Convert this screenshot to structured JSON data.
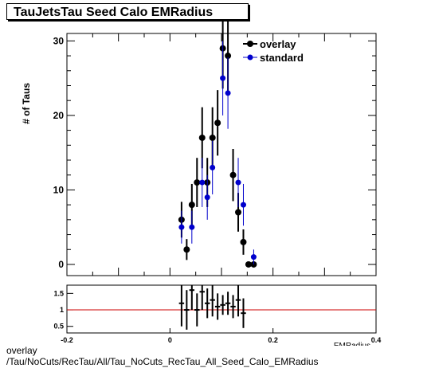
{
  "chart_data": [
    {
      "type": "scatter",
      "title": "TauJetsTau Seed Calo EMRadius",
      "ylabel": "# of Taus",
      "xlabel": "EMRadius",
      "xlim": [
        -0.2,
        0.4
      ],
      "ylim": [
        -1.5,
        31
      ],
      "y_ticks": [
        0,
        10,
        20,
        30
      ],
      "legend": "top-right",
      "series": [
        {
          "name": "overlay",
          "color": "#000000",
          "x": [
            0.0225,
            0.0325,
            0.0425,
            0.0525,
            0.0625,
            0.0725,
            0.0825,
            0.0925,
            0.1025,
            0.1125,
            0.1225,
            0.1325,
            0.1425,
            0.1525,
            0.1625
          ],
          "y": [
            6,
            2,
            8,
            11,
            17,
            11,
            17,
            19,
            29,
            28,
            12,
            7,
            3,
            0,
            0
          ],
          "err": [
            2.4,
            1.4,
            2.8,
            3.3,
            4.1,
            3.3,
            4.1,
            4.4,
            5.4,
            5.3,
            3.5,
            2.6,
            1.7,
            0,
            0
          ]
        },
        {
          "name": "standard",
          "color": "#0000cc",
          "x": [
            0.0225,
            0.0425,
            0.0625,
            0.0725,
            0.0825,
            0.1025,
            0.1125,
            0.1325,
            0.1425,
            0.1625
          ],
          "y": [
            5,
            5,
            11,
            9,
            13,
            25,
            23,
            11,
            8,
            1
          ],
          "err": [
            2.2,
            2.2,
            3.3,
            3.0,
            3.6,
            5.0,
            4.8,
            3.3,
            2.8,
            1.0
          ]
        }
      ]
    },
    {
      "type": "scatter",
      "xlim": [
        -0.2,
        0.4
      ],
      "ylim": [
        0.3,
        1.75
      ],
      "x_ticks": [
        -0.2,
        0,
        0.2,
        0.4
      ],
      "y_ticks": [
        0.5,
        1,
        1.5
      ],
      "reference_line": 1,
      "series": [
        {
          "x": [
            0.0225,
            0.0325,
            0.0425,
            0.0525,
            0.0625,
            0.0725,
            0.0825,
            0.0925,
            0.1025,
            0.1125,
            0.1225,
            0.1325,
            0.1425
          ],
          "y": [
            1.2,
            1.0,
            1.6,
            1.0,
            1.55,
            1.2,
            1.3,
            1.1,
            1.15,
            1.2,
            1.1,
            1.3,
            0.9
          ],
          "err": [
            0.7,
            0.6,
            0.6,
            0.5,
            0.55,
            0.45,
            0.5,
            0.4,
            0.3,
            0.35,
            0.35,
            0.5,
            0.45
          ]
        }
      ]
    }
  ],
  "caption": {
    "line1": "overlay",
    "line2": "/Tau/NoCuts/RecTau/All/Tau_NoCuts_RecTau_All_Seed_Calo_EMRadius"
  }
}
